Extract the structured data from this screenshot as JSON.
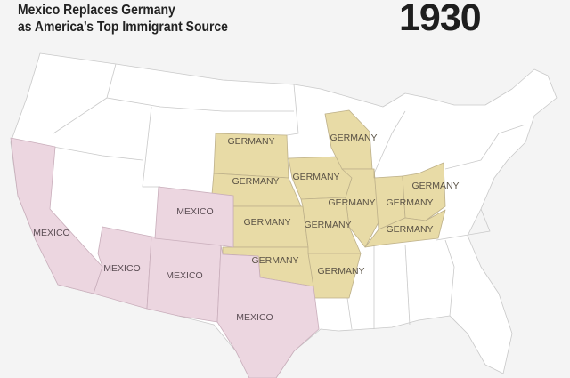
{
  "header": {
    "title_line1": "Mexico Replaces Germany",
    "title_line2": "as America’s Top Immigrant Source",
    "year": "1930"
  },
  "colors": {
    "germany": "#e8dba6",
    "mexico": "#ecd6e0",
    "other_states": "#ffffff",
    "background": "#f4f4f4"
  },
  "states": [
    {
      "state": "California",
      "label": "MEXICO"
    },
    {
      "state": "Arizona",
      "label": "MEXICO"
    },
    {
      "state": "New Mexico",
      "label": "MEXICO"
    },
    {
      "state": "Colorado",
      "label": "MEXICO"
    },
    {
      "state": "Texas",
      "label": "MEXICO"
    },
    {
      "state": "South Dakota",
      "label": "GERMANY"
    },
    {
      "state": "Nebraska",
      "label": "GERMANY"
    },
    {
      "state": "Kansas",
      "label": "GERMANY"
    },
    {
      "state": "Oklahoma",
      "label": "GERMANY"
    },
    {
      "state": "Iowa",
      "label": "GERMANY"
    },
    {
      "state": "Wisconsin",
      "label": "GERMANY"
    },
    {
      "state": "Illinois",
      "label": "GERMANY"
    },
    {
      "state": "Missouri",
      "label": "GERMANY"
    },
    {
      "state": "Arkansas",
      "label": "GERMANY"
    },
    {
      "state": "Indiana",
      "label": "GERMANY"
    },
    {
      "state": "Kentucky",
      "label": "GERMANY"
    },
    {
      "state": "Ohio",
      "label": "GERMANY"
    }
  ]
}
